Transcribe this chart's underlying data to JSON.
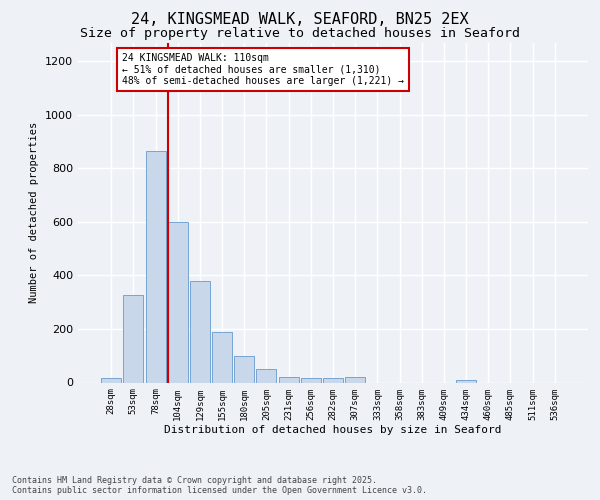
{
  "title_line1": "24, KINGSMEAD WALK, SEAFORD, BN25 2EX",
  "title_line2": "Size of property relative to detached houses in Seaford",
  "xlabel": "Distribution of detached houses by size in Seaford",
  "ylabel": "Number of detached properties",
  "footer_line1": "Contains HM Land Registry data © Crown copyright and database right 2025.",
  "footer_line2": "Contains public sector information licensed under the Open Government Licence v3.0.",
  "categories": [
    "28sqm",
    "53sqm",
    "78sqm",
    "104sqm",
    "129sqm",
    "155sqm",
    "180sqm",
    "205sqm",
    "231sqm",
    "256sqm",
    "282sqm",
    "307sqm",
    "333sqm",
    "358sqm",
    "383sqm",
    "409sqm",
    "434sqm",
    "460sqm",
    "485sqm",
    "511sqm",
    "536sqm"
  ],
  "values": [
    15,
    325,
    865,
    600,
    378,
    188,
    100,
    50,
    20,
    15,
    15,
    20,
    0,
    0,
    0,
    0,
    10,
    0,
    0,
    0,
    0
  ],
  "bar_color": "#c8d8ea",
  "bar_edge_color": "#6699cc",
  "vline_index": 3,
  "vline_color": "#cc0000",
  "annotation_text": "24 KINGSMEAD WALK: 110sqm\n← 51% of detached houses are smaller (1,310)\n48% of semi-detached houses are larger (1,221) →",
  "annotation_box_color": "#ffffff",
  "annotation_box_edge_color": "#cc0000",
  "ylim": [
    0,
    1270
  ],
  "yticks": [
    0,
    200,
    400,
    600,
    800,
    1000,
    1200
  ],
  "bg_color": "#eef2f7",
  "plot_bg_color": "#eef2f7",
  "grid_color": "#ffffff",
  "title_fontsize": 11,
  "subtitle_fontsize": 9.5
}
